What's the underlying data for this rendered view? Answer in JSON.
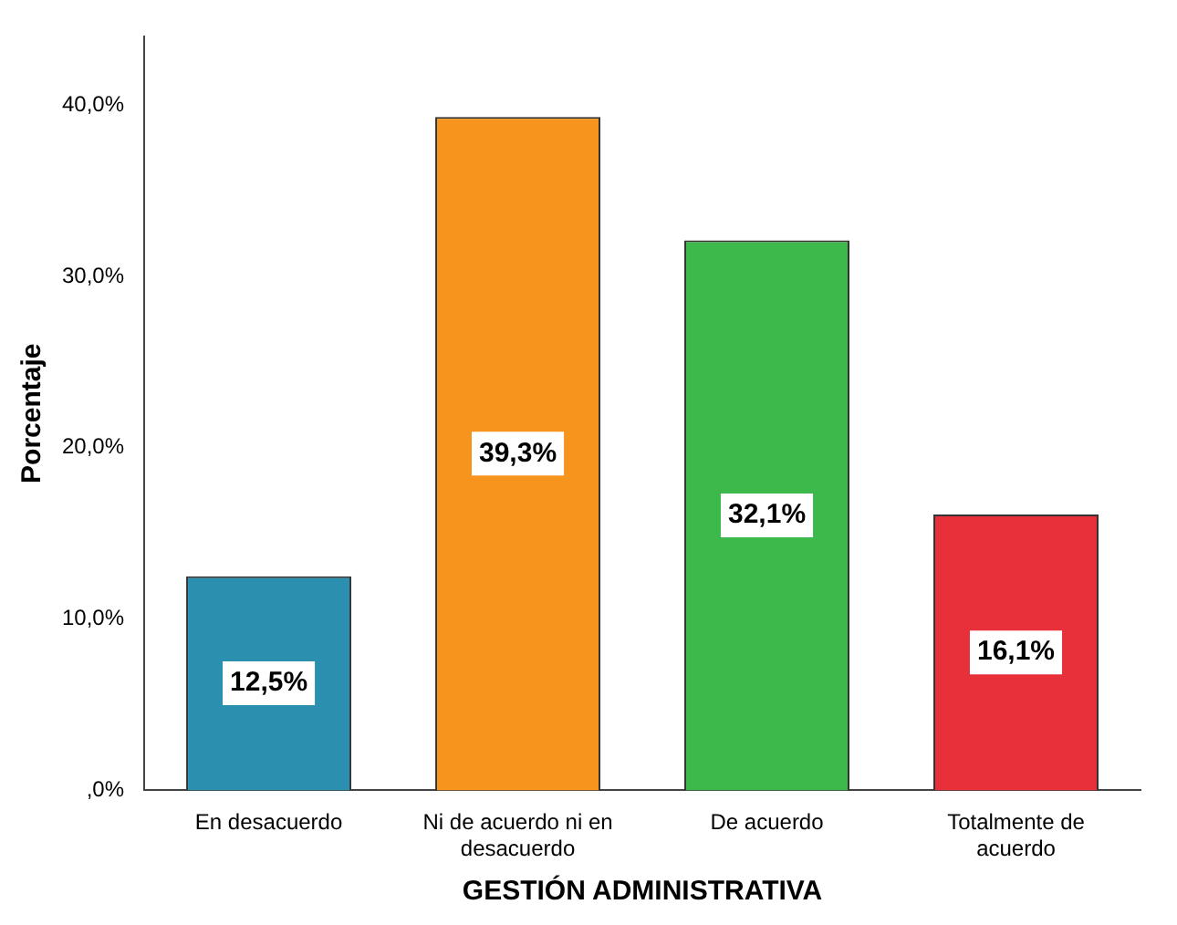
{
  "chart_data": {
    "type": "bar",
    "xlabel": "GESTIÓN ADMINISTRATIVA",
    "ylabel": "Porcentaje",
    "categories": [
      "En desacuerdo",
      "Ni de acuerdo ni en desacuerdo",
      "De acuerdo",
      "Totalmente de acuerdo"
    ],
    "values": [
      12.5,
      39.3,
      32.1,
      16.1
    ],
    "colors": [
      "#2b8fb0",
      "#f7941d",
      "#3cb94a",
      "#e8303a"
    ],
    "value_labels": [
      "12,5%",
      "39,3%",
      "32,1%",
      "16,1%"
    ],
    "ylim": [
      0,
      44
    ],
    "yticks": [
      {
        "value": 0,
        "label": ",0%"
      },
      {
        "value": 10,
        "label": "10,0%"
      },
      {
        "value": 20,
        "label": "20,0%"
      },
      {
        "value": 30,
        "label": "30,0%"
      },
      {
        "value": 40,
        "label": "40,0%"
      }
    ],
    "grid": false,
    "legend": false
  }
}
